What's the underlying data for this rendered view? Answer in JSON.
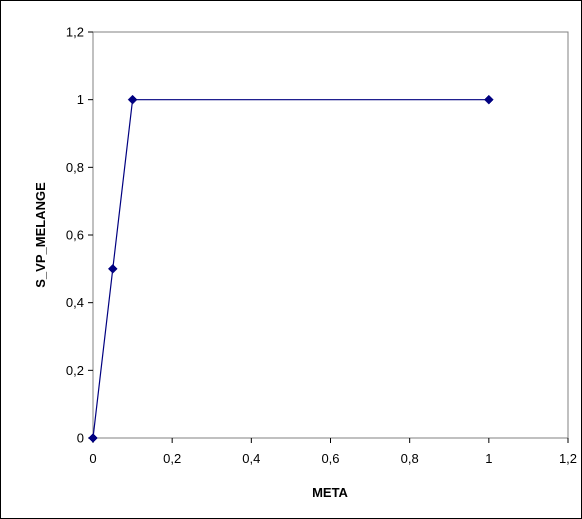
{
  "chart_data": {
    "type": "scatter",
    "title": "",
    "xlabel": "META",
    "ylabel": "S_VP_MELANGE",
    "xlim": [
      0,
      1.2
    ],
    "ylim": [
      0,
      1.2
    ],
    "x_ticks": [
      "0",
      "0,2",
      "0,4",
      "0,6",
      "0,8",
      "1",
      "1,2"
    ],
    "y_ticks": [
      "0",
      "0,2",
      "0,4",
      "0,6",
      "0,8",
      "1",
      "1,2"
    ],
    "grid": false,
    "legend": "none",
    "line": true,
    "marker": "diamond",
    "color": "#000080",
    "x": [
      0,
      0.05,
      0.1,
      1
    ],
    "y": [
      0,
      0.5,
      1,
      1
    ]
  }
}
